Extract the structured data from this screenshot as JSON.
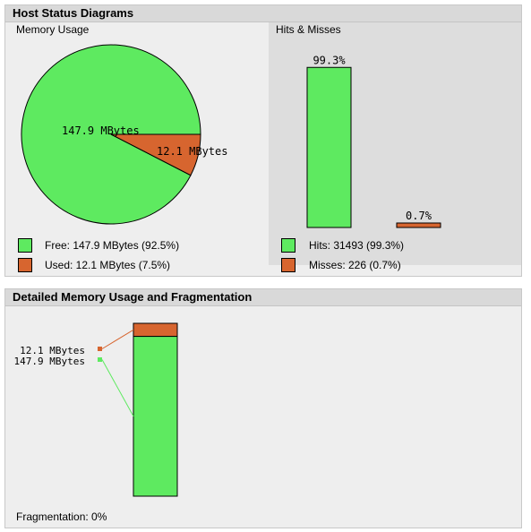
{
  "host_status": {
    "title": "Host Status Diagrams",
    "memory": {
      "title": "Memory Usage",
      "legend": [
        {
          "label": "Free: 147.9 MBytes (92.5%)",
          "color": "#5eea60"
        },
        {
          "label": "Used: 12.1 MBytes (7.5%)",
          "color": "#d7652f"
        }
      ]
    },
    "hits": {
      "title": "Hits & Misses",
      "legend": [
        {
          "label": "Hits: 31493 (99.3%)",
          "color": "#5eea60"
        },
        {
          "label": "Misses: 226 (0.7%)",
          "color": "#d7652f"
        }
      ]
    }
  },
  "detail": {
    "title": "Detailed Memory Usage and Fragmentation",
    "fragmentation": "Fragmentation: 0%"
  },
  "chart_data": [
    {
      "type": "pie",
      "labels": [
        "147.9 MBytes",
        "12.1 MBytes"
      ],
      "values": [
        147.9,
        12.1
      ],
      "percent": [
        92.5,
        7.5
      ],
      "colors": [
        "#5eea60",
        "#d7652f"
      ]
    },
    {
      "type": "bar",
      "categories": [
        "Hits",
        "Misses"
      ],
      "values": [
        99.3,
        0.7
      ],
      "data_labels": [
        "99.3%",
        "0.7%"
      ],
      "colors": [
        "#5eea60",
        "#d7652f"
      ],
      "ylim": [
        0,
        100
      ]
    },
    {
      "type": "bar",
      "stacked": true,
      "series": [
        {
          "label": "12.1 MBytes",
          "value": 12.1,
          "color": "#d7652f"
        },
        {
          "label": "147.9 MBytes",
          "value": 147.9,
          "color": "#5eea60"
        }
      ]
    }
  ]
}
